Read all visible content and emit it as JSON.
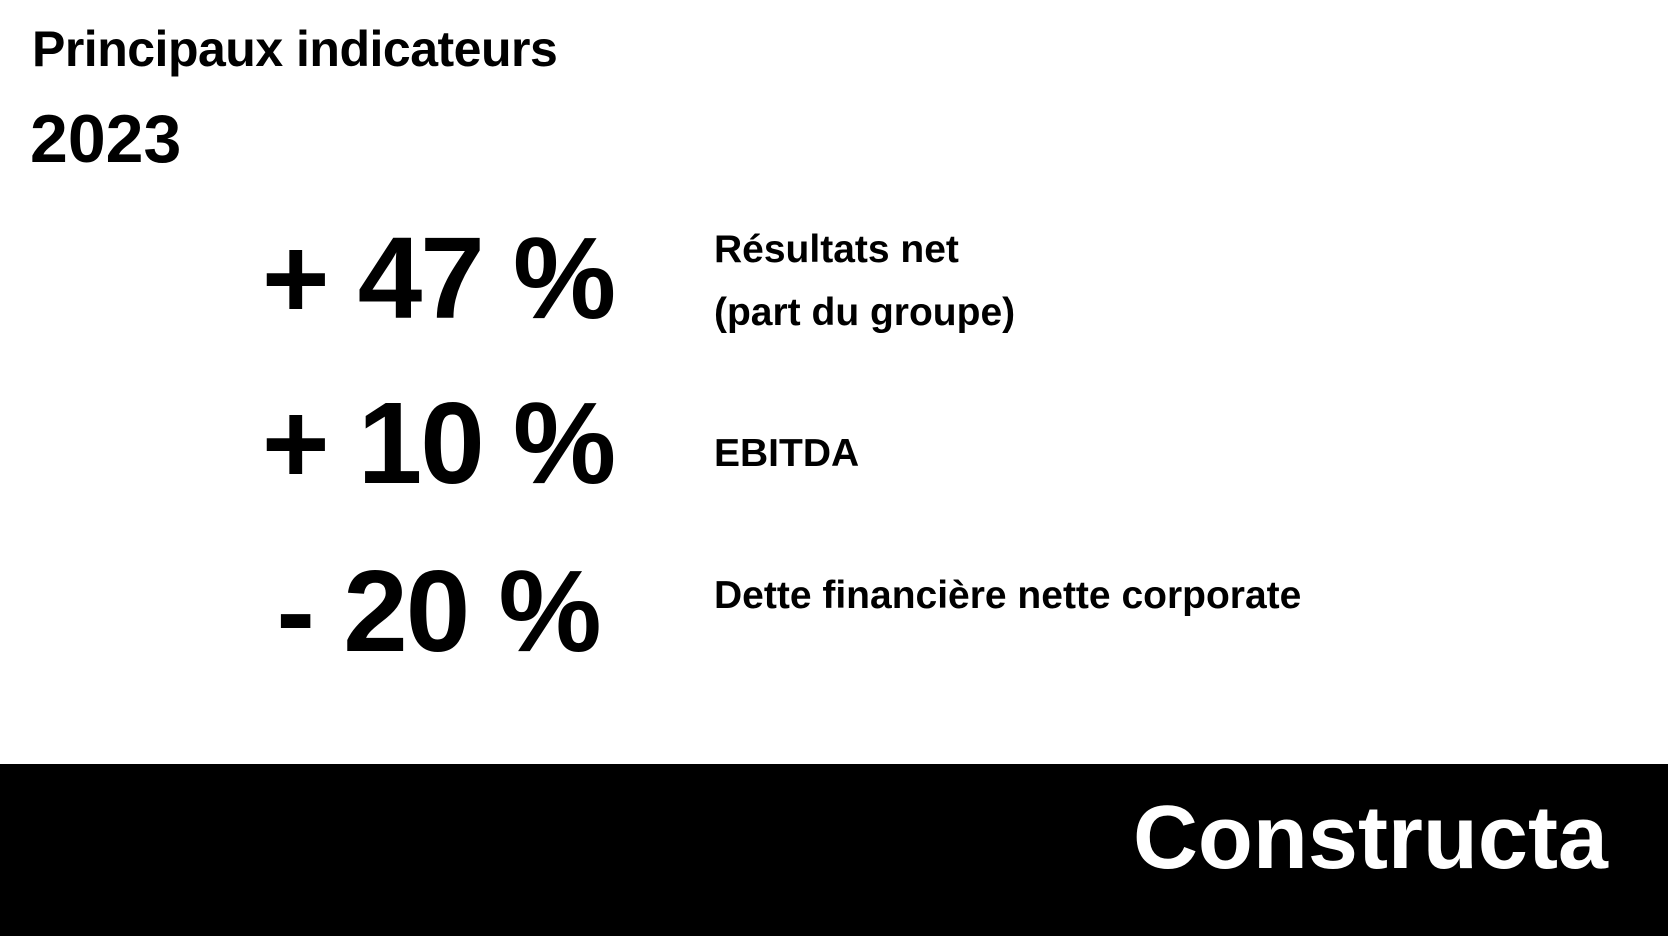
{
  "header": {
    "title": "Principaux indicateurs",
    "year": "2023"
  },
  "indicators": [
    {
      "figure": "+ 47 %",
      "label": [
        "Résultats net",
        "(part du groupe)"
      ]
    },
    {
      "figure": "+ 10 %",
      "label": [
        "EBITDA"
      ]
    },
    {
      "figure": "- 20 %",
      "label": [
        "Dette financière nette corporate"
      ]
    }
  ],
  "footer": {
    "brand": "Constructa"
  }
}
